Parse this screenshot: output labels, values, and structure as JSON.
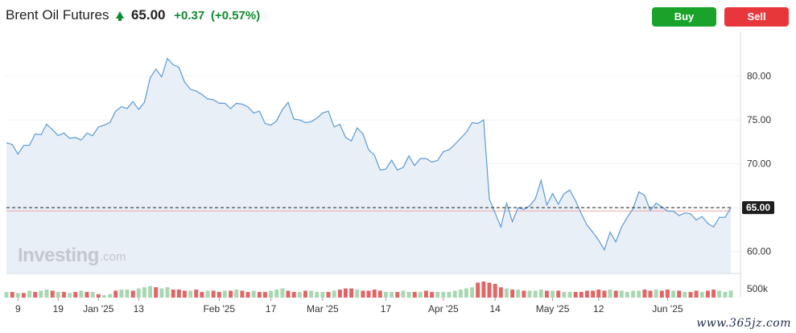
{
  "header": {
    "instrument": "Brent Oil Futures",
    "price": "65.00",
    "change": "+0.37",
    "change_pct": "(+0.57%)",
    "buy_label": "Buy",
    "sell_label": "Sell"
  },
  "watermark": {
    "brand": "Investing",
    "domain": ".com"
  },
  "site_stamp": "www.365jz.com",
  "colors": {
    "up": "#0f8a2e",
    "buy": "#1aa32a",
    "sell": "#e8373b",
    "line": "#5b9bd5",
    "area": "#e8eff7",
    "vol_up": "#a9d7b3",
    "vol_down": "#e06666"
  },
  "chart_data": {
    "type": "area",
    "y_ticks": [
      "80.00",
      "75.00",
      "70.00",
      "65.00",
      "60.00"
    ],
    "ylim": [
      57.5,
      85
    ],
    "current_label": "65.00",
    "reference_value": 64.63,
    "volume_tick": "500k",
    "x_ticks": [
      {
        "label": "9",
        "i": 2
      },
      {
        "label": "19",
        "i": 9
      },
      {
        "label": "Jan '25",
        "i": 16
      },
      {
        "label": "13",
        "i": 23
      },
      {
        "label": "Feb '25",
        "i": 37
      },
      {
        "label": "17",
        "i": 46
      },
      {
        "label": "Mar '25",
        "i": 55
      },
      {
        "label": "17",
        "i": 66
      },
      {
        "label": "Apr '25",
        "i": 76
      },
      {
        "label": "14",
        "i": 85
      },
      {
        "label": "May '25",
        "i": 95
      },
      {
        "label": "12",
        "i": 103
      },
      {
        "label": "Jun '25",
        "i": 115
      }
    ],
    "values": [
      72.4,
      72.2,
      71.1,
      72.1,
      72.1,
      73.4,
      73.3,
      74.5,
      73.9,
      73.2,
      73.5,
      72.9,
      73.0,
      72.7,
      73.5,
      73.2,
      74.2,
      74.4,
      74.7,
      76.0,
      76.5,
      76.3,
      77.1,
      76.2,
      77.0,
      79.8,
      80.8,
      79.9,
      82.0,
      81.3,
      81.0,
      79.3,
      78.5,
      78.3,
      77.9,
      77.4,
      77.3,
      76.9,
      76.9,
      76.3,
      76.9,
      76.8,
      76.5,
      75.8,
      76.0,
      74.6,
      74.4,
      74.9,
      76.2,
      77.0,
      75.1,
      75.0,
      74.7,
      74.8,
      75.2,
      75.8,
      76.0,
      74.2,
      74.5,
      73.0,
      72.6,
      74.1,
      73.4,
      71.6,
      71.0,
      69.3,
      69.4,
      70.4,
      69.3,
      69.6,
      70.9,
      69.8,
      70.6,
      70.6,
      70.2,
      70.4,
      71.4,
      71.6,
      72.2,
      72.9,
      73.6,
      74.7,
      74.6,
      75.0,
      66.0,
      64.4,
      62.8,
      65.5,
      63.4,
      65.0,
      64.8,
      65.2,
      66.0,
      68.1,
      65.3,
      66.6,
      65.4,
      66.6,
      67.0,
      65.8,
      64.3,
      63.0,
      62.2,
      61.3,
      60.2,
      62.2,
      61.1,
      62.8,
      63.9,
      64.9,
      66.8,
      66.4,
      64.7,
      65.5,
      65.1,
      64.6,
      64.6,
      64.1,
      64.4,
      64.3,
      63.6,
      64.0,
      63.2,
      62.8,
      63.9,
      63.9,
      65.0
    ],
    "volumes": [
      0.5,
      0.5,
      0.4,
      0.4,
      0.6,
      0.5,
      0.6,
      0.7,
      0.6,
      0.5,
      0.5,
      0.4,
      0.5,
      0.6,
      0.5,
      0.5,
      0.3,
      0.2,
      0.3,
      0.6,
      0.7,
      0.7,
      0.6,
      0.8,
      0.9,
      1.0,
      0.9,
      0.8,
      0.9,
      0.7,
      0.7,
      0.6,
      0.6,
      0.7,
      0.5,
      0.6,
      0.6,
      0.5,
      0.6,
      0.6,
      0.7,
      0.6,
      0.5,
      0.6,
      0.5,
      0.5,
      0.6,
      0.7,
      0.8,
      0.6,
      0.5,
      0.5,
      0.6,
      0.6,
      0.5,
      0.5,
      0.5,
      0.6,
      0.7,
      0.8,
      0.8,
      0.7,
      0.6,
      0.6,
      0.7,
      0.6,
      0.5,
      0.5,
      0.5,
      0.6,
      0.5,
      0.5,
      0.5,
      0.6,
      0.5,
      0.5,
      0.5,
      0.5,
      0.6,
      0.7,
      0.8,
      0.9,
      1.3,
      1.4,
      1.3,
      1.2,
      0.9,
      0.8,
      0.7,
      0.7,
      0.6,
      0.6,
      0.6,
      0.7,
      0.6,
      0.6,
      0.6,
      0.5,
      0.5,
      0.5,
      0.5,
      0.6,
      0.6,
      0.7,
      0.6,
      0.7,
      0.6,
      0.6,
      0.5,
      0.6,
      0.6,
      0.7,
      0.6,
      0.7,
      0.6,
      0.7,
      0.6,
      0.6,
      0.5,
      0.5,
      0.6,
      0.5,
      0.6,
      0.7,
      0.6,
      0.5,
      0.6
    ],
    "volume_up": [
      1,
      0,
      1,
      0,
      1,
      0,
      1,
      1,
      0,
      1,
      0,
      1,
      0,
      1,
      0,
      1,
      0,
      1,
      1,
      0,
      1,
      1,
      0,
      1,
      1,
      1,
      0,
      1,
      1,
      0,
      0,
      0,
      1,
      0,
      0,
      1,
      0,
      0,
      1,
      0,
      1,
      0,
      0,
      1,
      0,
      0,
      1,
      1,
      1,
      0,
      0,
      1,
      0,
      1,
      1,
      1,
      0,
      1,
      0,
      0,
      0,
      1,
      0,
      0,
      0,
      0,
      1,
      1,
      0,
      1,
      1,
      0,
      1,
      0,
      0,
      1,
      1,
      1,
      1,
      1,
      1,
      1,
      0,
      0,
      0,
      0,
      0,
      1,
      0,
      1,
      0,
      1,
      1,
      1,
      0,
      1,
      0,
      1,
      1,
      0,
      0,
      0,
      0,
      0,
      0,
      1,
      0,
      1,
      1,
      1,
      1,
      0,
      0,
      1,
      0,
      0,
      1,
      0,
      1,
      0,
      0,
      1,
      0,
      0,
      1,
      1,
      1
    ]
  }
}
